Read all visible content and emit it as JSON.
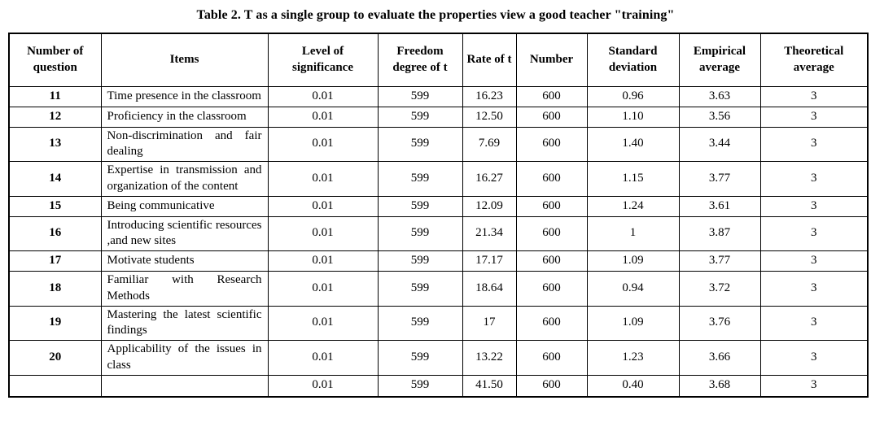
{
  "title": "Table 2. T as a single group to evaluate the properties view a good teacher \"training\"",
  "table": {
    "headers": [
      "Number of question",
      "Items",
      "Level of significance",
      "Freedom degree of t",
      "Rate of t",
      "Number",
      "Standard deviation",
      "Empirical average",
      "Theoretical average"
    ],
    "rows": [
      {
        "question": "11",
        "item": "Time presence in the classroom",
        "significance": "0.01",
        "freedom": "599",
        "rate": "16.23",
        "number": "600",
        "std": "0.96",
        "empirical": "3.63",
        "theoretical": "3"
      },
      {
        "question": "12",
        "item": "Proficiency in the classroom",
        "significance": "0.01",
        "freedom": "599",
        "rate": "12.50",
        "number": "600",
        "std": "1.10",
        "empirical": "3.56",
        "theoretical": "3"
      },
      {
        "question": "13",
        "item": "Non-discrimination and fair dealing",
        "significance": "0.01",
        "freedom": "599",
        "rate": "7.69",
        "number": "600",
        "std": "1.40",
        "empirical": "3.44",
        "theoretical": "3"
      },
      {
        "question": "14",
        "item": "Expertise in transmission and organization of the content",
        "significance": "0.01",
        "freedom": "599",
        "rate": "16.27",
        "number": "600",
        "std": "1.15",
        "empirical": "3.77",
        "theoretical": "3"
      },
      {
        "question": "15",
        "item": "Being communicative",
        "significance": "0.01",
        "freedom": "599",
        "rate": "12.09",
        "number": "600",
        "std": "1.24",
        "empirical": "3.61",
        "theoretical": "3"
      },
      {
        "question": "16",
        "item": "Introducing scientific resources ,and new sites",
        "significance": "0.01",
        "freedom": "599",
        "rate": "21.34",
        "number": "600",
        "std": "1",
        "empirical": "3.87",
        "theoretical": "3"
      },
      {
        "question": "17",
        "item": "Motivate students",
        "significance": "0.01",
        "freedom": "599",
        "rate": "17.17",
        "number": "600",
        "std": "1.09",
        "empirical": "3.77",
        "theoretical": "3"
      },
      {
        "question": "18",
        "item": "Familiar with Research Methods",
        "significance": "0.01",
        "freedom": "599",
        "rate": "18.64",
        "number": "600",
        "std": "0.94",
        "empirical": "3.72",
        "theoretical": "3"
      },
      {
        "question": "19",
        "item": "Mastering the latest scientific findings",
        "significance": "0.01",
        "freedom": "599",
        "rate": "17",
        "number": "600",
        "std": "1.09",
        "empirical": "3.76",
        "theoretical": "3"
      },
      {
        "question": "20",
        "item": "Applicability of the issues in class",
        "significance": "0.01",
        "freedom": "599",
        "rate": "13.22",
        "number": "600",
        "std": "1.23",
        "empirical": "3.66",
        "theoretical": "3"
      }
    ],
    "summary": {
      "question": "",
      "item": "",
      "significance": "0.01",
      "freedom": "599",
      "rate": "41.50",
      "number": "600",
      "std": "0.40",
      "empirical": "3.68",
      "theoretical": "3"
    }
  }
}
